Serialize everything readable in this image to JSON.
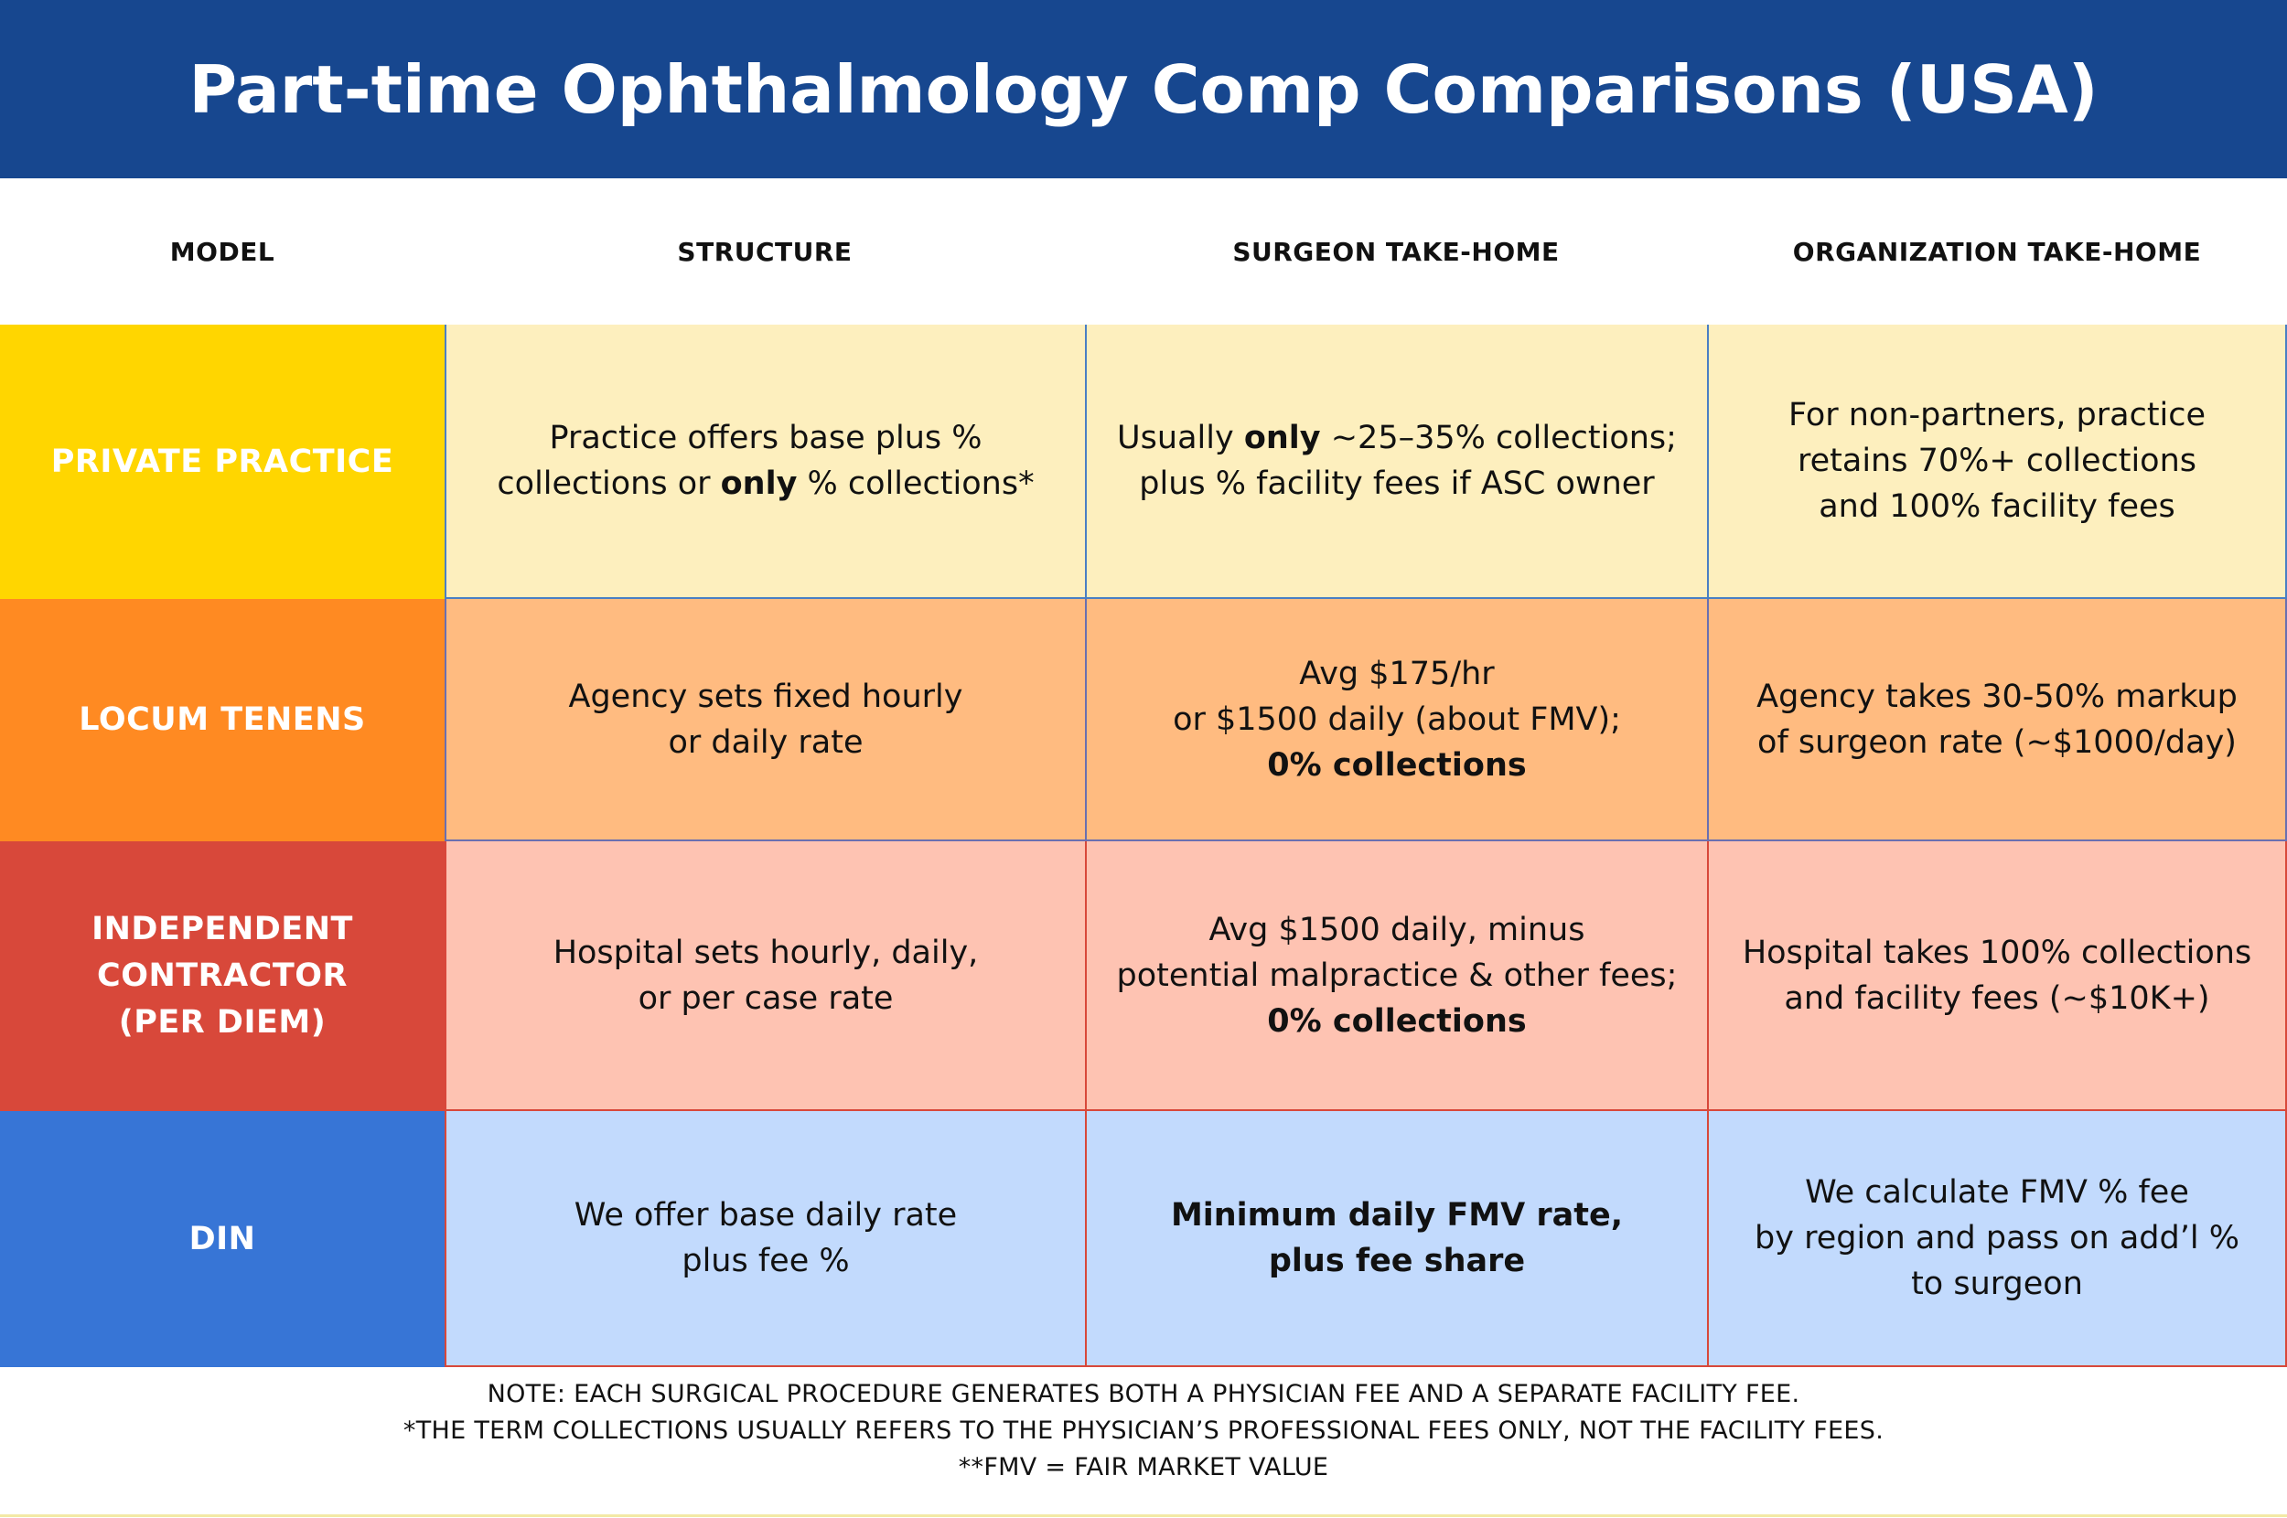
{
  "title": "Part-time Ophthalmology Comp Comparisons (USA)",
  "headers": {
    "model": "MODEL",
    "structure": "STRUCTURE",
    "surgeon": "SURGEON TAKE-HOME",
    "organization": "ORGANIZATION TAKE-HOME"
  },
  "rows": {
    "private_practice": {
      "model": "PRIVATE PRACTICE",
      "structure": {
        "a": "Practice offers base plus %\ncollections or ",
        "b": "only",
        "c": " % collections*"
      },
      "surgeon": {
        "a": "Usually ",
        "b": "only",
        "c": " ~25–35% collections;\nplus % facility fees if ASC owner"
      },
      "organization": "For non-partners, practice\nretains 70%+ collections\nand 100% facility fees"
    },
    "locum_tenens": {
      "model": "LOCUM TENENS",
      "structure": "Agency sets fixed hourly\nor daily rate",
      "surgeon": {
        "a": "Avg $175/hr\nor $1500 daily (about FMV);",
        "b": "0% collections"
      },
      "organization": "Agency takes 30-50% markup\nof surgeon rate (~$1000/day)"
    },
    "independent_contractor": {
      "model": "INDEPENDENT\nCONTRACTOR\n(PER DIEM)",
      "structure": "Hospital sets hourly, daily,\nor per case rate",
      "surgeon": {
        "a": "Avg $1500 daily, minus\npotential malpractice & other fees;",
        "b": "0% collections"
      },
      "organization": "Hospital takes 100% collections\nand facility fees (~$10K+)"
    },
    "din": {
      "model": "DIN",
      "structure": "We offer base daily rate\nplus fee %",
      "surgeon": "Minimum daily FMV rate,\nplus fee share",
      "organization": "We calculate FMV % fee\nby region and pass on add’l %\nto surgeon"
    }
  },
  "notes": [
    "NOTE: EACH SURGICAL PROCEDURE GENERATES BOTH A PHYSICIAN FEE AND A SEPARATE FACILITY FEE.",
    "*THE TERM COLLECTIONS USUALLY REFERS TO THE PHYSICIAN’S PROFESSIONAL FEES ONLY, NOT THE FACILITY FEES.",
    "**FMV = FAIR MARKET VALUE"
  ],
  "colors": {
    "title_bg": "#17478f",
    "private_model": "#ffd600",
    "private_cell": "#fdefbe",
    "locum_model": "#ff8a22",
    "locum_cell": "#ffbb80",
    "contractor_model": "#d8483a",
    "contractor_cell": "#fec3b2",
    "din_model": "#3775d6",
    "din_cell": "#c2dafd"
  }
}
